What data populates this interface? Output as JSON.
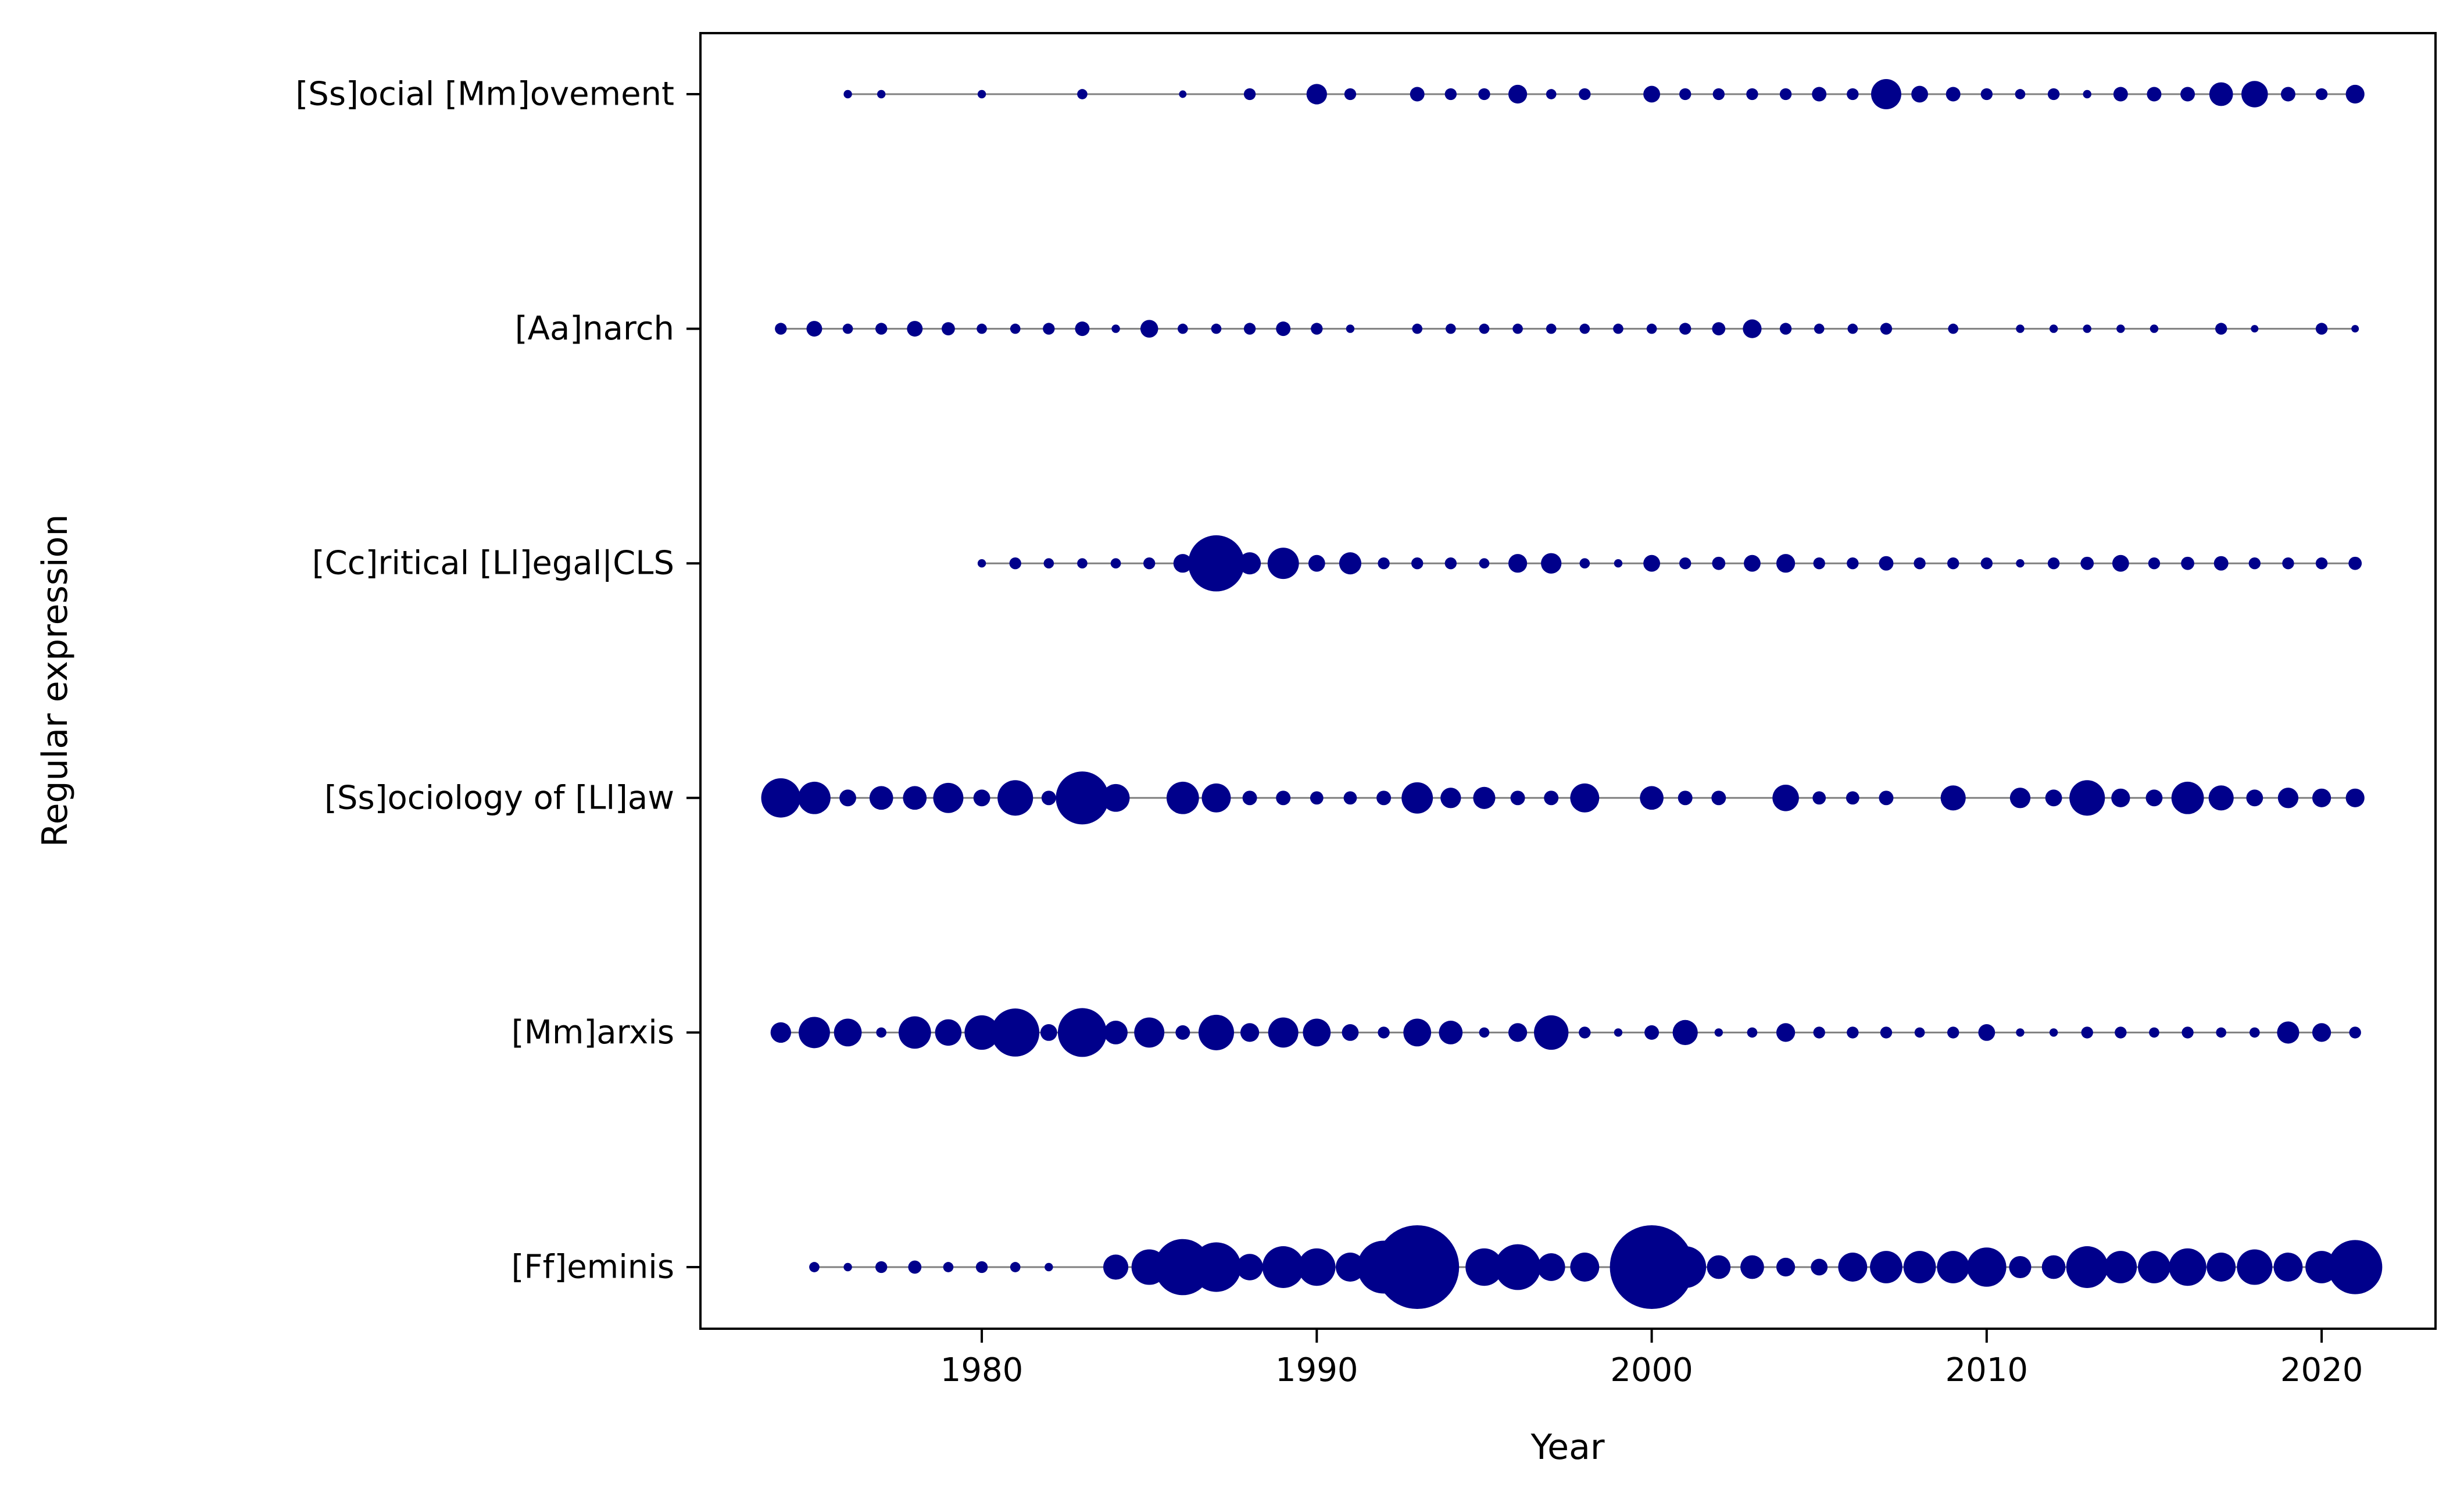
{
  "chart_data": {
    "type": "scatter",
    "subtype": "bubble-timeline",
    "xlabel": "Year",
    "ylabel": "Regular expression",
    "xlim": [
      1971.6,
      2023.4
    ],
    "xticks": [
      1980,
      1990,
      2000,
      2010,
      2020
    ],
    "grid": false,
    "colors": {
      "marker": "#00008B",
      "line": "#808080",
      "axes": "#000000"
    },
    "series": [
      {
        "name": "[Ss]ocial [Mm]ovement",
        "points": [
          [
            1976,
            1
          ],
          [
            1977,
            1
          ],
          [
            1980,
            1
          ],
          [
            1983,
            1.5
          ],
          [
            1986,
            0.8
          ],
          [
            1988,
            2
          ],
          [
            1990,
            6
          ],
          [
            1991,
            2
          ],
          [
            1993,
            3
          ],
          [
            1994,
            2
          ],
          [
            1995,
            2
          ],
          [
            1996,
            5
          ],
          [
            1997,
            1.5
          ],
          [
            1998,
            2
          ],
          [
            2000,
            4
          ],
          [
            2001,
            2
          ],
          [
            2002,
            2
          ],
          [
            2003,
            2
          ],
          [
            2004,
            2
          ],
          [
            2005,
            3
          ],
          [
            2006,
            2
          ],
          [
            2007,
            13
          ],
          [
            2008,
            4
          ],
          [
            2009,
            3
          ],
          [
            2010,
            2
          ],
          [
            2011,
            1.5
          ],
          [
            2012,
            2
          ],
          [
            2013,
            1
          ],
          [
            2014,
            3
          ],
          [
            2015,
            3
          ],
          [
            2016,
            3
          ],
          [
            2017,
            8
          ],
          [
            2018,
            10
          ],
          [
            2019,
            3
          ],
          [
            2020,
            2
          ],
          [
            2021,
            5
          ]
        ]
      },
      {
        "name": "[Aa]narch",
        "points": [
          [
            1974,
            2
          ],
          [
            1975,
            3.5
          ],
          [
            1976,
            1.5
          ],
          [
            1977,
            2
          ],
          [
            1978,
            3.5
          ],
          [
            1979,
            2.5
          ],
          [
            1980,
            1.5
          ],
          [
            1981,
            1.5
          ],
          [
            1982,
            2
          ],
          [
            1983,
            3
          ],
          [
            1984,
            1
          ],
          [
            1985,
            4.5
          ],
          [
            1986,
            1.5
          ],
          [
            1987,
            1.5
          ],
          [
            1988,
            2
          ],
          [
            1989,
            3
          ],
          [
            1990,
            2
          ],
          [
            1991,
            1
          ],
          [
            1993,
            1.5
          ],
          [
            1994,
            1.5
          ],
          [
            1995,
            1.5
          ],
          [
            1996,
            1.5
          ],
          [
            1997,
            1.5
          ],
          [
            1998,
            1.5
          ],
          [
            1999,
            1.5
          ],
          [
            2000,
            1.5
          ],
          [
            2001,
            2
          ],
          [
            2002,
            2.5
          ],
          [
            2003,
            5
          ],
          [
            2004,
            2
          ],
          [
            2005,
            1.5
          ],
          [
            2006,
            1.5
          ],
          [
            2007,
            2
          ],
          [
            2009,
            1.5
          ],
          [
            2011,
            1
          ],
          [
            2012,
            1
          ],
          [
            2013,
            1
          ],
          [
            2014,
            1
          ],
          [
            2015,
            1
          ],
          [
            2017,
            2
          ],
          [
            2018,
            0.8
          ],
          [
            2020,
            2
          ],
          [
            2021,
            0.8
          ]
        ]
      },
      {
        "name": "[Cc]ritical [Ll]egal|CLS",
        "points": [
          [
            1980,
            1
          ],
          [
            1981,
            2
          ],
          [
            1982,
            1.5
          ],
          [
            1983,
            1.5
          ],
          [
            1984,
            1.5
          ],
          [
            1985,
            2
          ],
          [
            1986,
            5
          ],
          [
            1987,
            45
          ],
          [
            1988,
            7
          ],
          [
            1989,
            14
          ],
          [
            1990,
            4
          ],
          [
            1991,
            7
          ],
          [
            1992,
            2
          ],
          [
            1993,
            2
          ],
          [
            1994,
            2
          ],
          [
            1995,
            1.5
          ],
          [
            1996,
            5
          ],
          [
            1997,
            6
          ],
          [
            1998,
            1.5
          ],
          [
            1999,
            1
          ],
          [
            2000,
            4
          ],
          [
            2001,
            2
          ],
          [
            2002,
            2.5
          ],
          [
            2003,
            4
          ],
          [
            2004,
            5
          ],
          [
            2005,
            2
          ],
          [
            2006,
            2
          ],
          [
            2007,
            3
          ],
          [
            2008,
            2
          ],
          [
            2009,
            2
          ],
          [
            2010,
            2
          ],
          [
            2011,
            1
          ],
          [
            2012,
            2
          ],
          [
            2013,
            2.5
          ],
          [
            2014,
            4
          ],
          [
            2015,
            2
          ],
          [
            2016,
            2.5
          ],
          [
            2017,
            3
          ],
          [
            2018,
            2
          ],
          [
            2019,
            2
          ],
          [
            2020,
            2
          ],
          [
            2021,
            2.5
          ]
        ]
      },
      {
        "name": "[Ss]ociology of [Ll]aw",
        "points": [
          [
            1974,
            22
          ],
          [
            1975,
            15
          ],
          [
            1976,
            4
          ],
          [
            1977,
            8
          ],
          [
            1978,
            8
          ],
          [
            1979,
            13
          ],
          [
            1980,
            4
          ],
          [
            1981,
            18
          ],
          [
            1982,
            3
          ],
          [
            1983,
            40
          ],
          [
            1984,
            11
          ],
          [
            1986,
            15
          ],
          [
            1987,
            12
          ],
          [
            1988,
            3
          ],
          [
            1989,
            3
          ],
          [
            1990,
            2.5
          ],
          [
            1991,
            2.5
          ],
          [
            1992,
            3
          ],
          [
            1993,
            14
          ],
          [
            1994,
            6
          ],
          [
            1995,
            7
          ],
          [
            1996,
            3
          ],
          [
            1997,
            3
          ],
          [
            1998,
            12
          ],
          [
            2000,
            8
          ],
          [
            2001,
            3
          ],
          [
            2002,
            3
          ],
          [
            2004,
            10
          ],
          [
            2005,
            2.5
          ],
          [
            2006,
            2.5
          ],
          [
            2007,
            3
          ],
          [
            2009,
            9
          ],
          [
            2011,
            6
          ],
          [
            2012,
            4
          ],
          [
            2013,
            18
          ],
          [
            2014,
            5
          ],
          [
            2015,
            4
          ],
          [
            2016,
            15
          ],
          [
            2017,
            9
          ],
          [
            2018,
            4
          ],
          [
            2019,
            6
          ],
          [
            2020,
            5
          ],
          [
            2021,
            5
          ]
        ]
      },
      {
        "name": "[Mm]arxis",
        "points": [
          [
            1974,
            6
          ],
          [
            1975,
            14
          ],
          [
            1976,
            11
          ],
          [
            1977,
            1.5
          ],
          [
            1978,
            15
          ],
          [
            1979,
            10
          ],
          [
            1980,
            17
          ],
          [
            1981,
            33
          ],
          [
            1982,
            4
          ],
          [
            1983,
            34
          ],
          [
            1984,
            8
          ],
          [
            1985,
            13
          ],
          [
            1986,
            3
          ],
          [
            1987,
            18
          ],
          [
            1988,
            5
          ],
          [
            1989,
            13
          ],
          [
            1990,
            11
          ],
          [
            1991,
            4
          ],
          [
            1992,
            2
          ],
          [
            1993,
            11
          ],
          [
            1994,
            8
          ],
          [
            1995,
            1.5
          ],
          [
            1996,
            5
          ],
          [
            1997,
            17
          ],
          [
            1998,
            2
          ],
          [
            1999,
            1
          ],
          [
            2000,
            3
          ],
          [
            2001,
            9
          ],
          [
            2002,
            1
          ],
          [
            2003,
            1.5
          ],
          [
            2004,
            5
          ],
          [
            2005,
            2
          ],
          [
            2006,
            2
          ],
          [
            2007,
            2
          ],
          [
            2008,
            1.5
          ],
          [
            2009,
            2
          ],
          [
            2010,
            4
          ],
          [
            2011,
            1
          ],
          [
            2012,
            1
          ],
          [
            2013,
            2
          ],
          [
            2014,
            2
          ],
          [
            2015,
            1.5
          ],
          [
            2016,
            2
          ],
          [
            2017,
            1.5
          ],
          [
            2018,
            1.5
          ],
          [
            2019,
            7
          ],
          [
            2020,
            5
          ],
          [
            2021,
            2
          ]
        ]
      },
      {
        "name": "[Ff]eminis",
        "points": [
          [
            1975,
            1.5
          ],
          [
            1976,
            1
          ],
          [
            1977,
            2
          ],
          [
            1978,
            2.5
          ],
          [
            1979,
            1.5
          ],
          [
            1980,
            2
          ],
          [
            1981,
            1.5
          ],
          [
            1982,
            1
          ],
          [
            1984,
            9
          ],
          [
            1985,
            18
          ],
          [
            1986,
            45
          ],
          [
            1987,
            35
          ],
          [
            1988,
            10
          ],
          [
            1989,
            25
          ],
          [
            1990,
            20
          ],
          [
            1991,
            12
          ],
          [
            1992,
            40
          ],
          [
            1993,
            100
          ],
          [
            1995,
            20
          ],
          [
            1996,
            30
          ],
          [
            1997,
            11
          ],
          [
            1998,
            12
          ],
          [
            2000,
            100
          ],
          [
            2001,
            25
          ],
          [
            2002,
            8
          ],
          [
            2003,
            8
          ],
          [
            2004,
            5
          ],
          [
            2005,
            4
          ],
          [
            2006,
            12
          ],
          [
            2007,
            15
          ],
          [
            2008,
            15
          ],
          [
            2009,
            15
          ],
          [
            2010,
            22
          ],
          [
            2011,
            7
          ],
          [
            2012,
            8
          ],
          [
            2013,
            25
          ],
          [
            2014,
            15
          ],
          [
            2015,
            15
          ],
          [
            2016,
            20
          ],
          [
            2017,
            12
          ],
          [
            2018,
            18
          ],
          [
            2019,
            12
          ],
          [
            2020,
            15
          ],
          [
            2021,
            42
          ]
        ]
      }
    ]
  }
}
